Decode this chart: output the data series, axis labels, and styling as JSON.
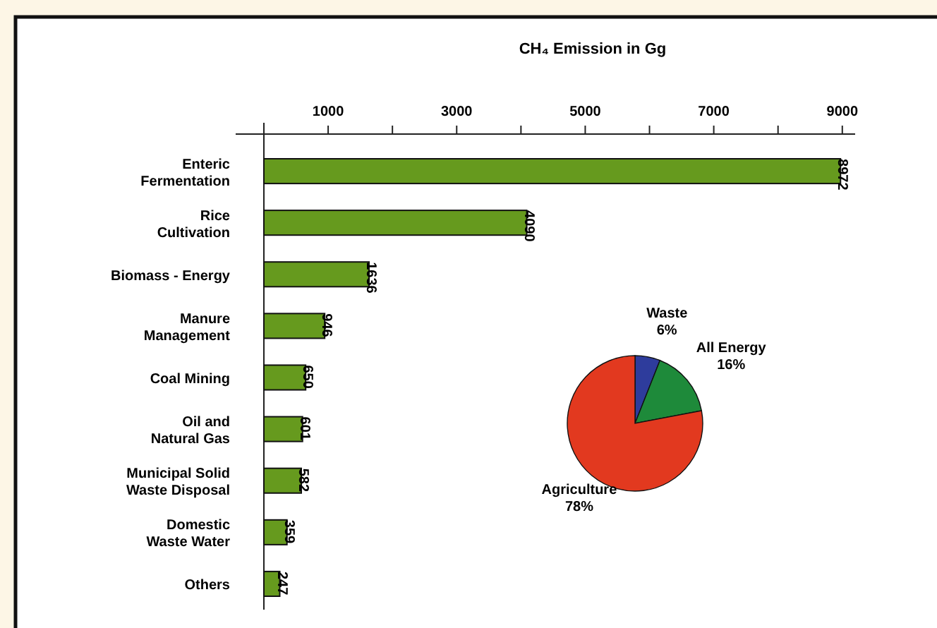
{
  "chart_data": [
    {
      "type": "bar",
      "orientation": "horizontal",
      "title": "CH₄ Emission in Gg",
      "categories": [
        "Enteric\nFermentation",
        "Rice\nCultivation",
        "Biomass - Energy",
        "Manure\nManagement",
        "Coal Mining",
        "Oil and\nNatural Gas",
        "Municipal Solid\nWaste Disposal",
        "Domestic\nWaste Water",
        "Others"
      ],
      "values": [
        8972,
        4090,
        1636,
        946,
        650,
        601,
        582,
        359,
        247
      ],
      "color": "#669a1e",
      "data_labels": true,
      "grid": false,
      "xlim": [
        0,
        9200
      ],
      "xticks": [
        1000,
        {
          "value": 2000,
          "label": null
        },
        3000,
        {
          "value": 4000,
          "label": null
        },
        5000,
        {
          "value": 6000,
          "label": null
        },
        7000,
        {
          "value": 8000,
          "label": null
        },
        9000
      ]
    },
    {
      "type": "pie",
      "categories": [
        "Waste",
        "All Energy",
        "Agriculture"
      ],
      "values": [
        6,
        16,
        78
      ],
      "colors": [
        "#2e3c9c",
        "#1e8a3a",
        "#e2391f"
      ],
      "value_labels": [
        "6%",
        "16%",
        "78%"
      ]
    }
  ]
}
